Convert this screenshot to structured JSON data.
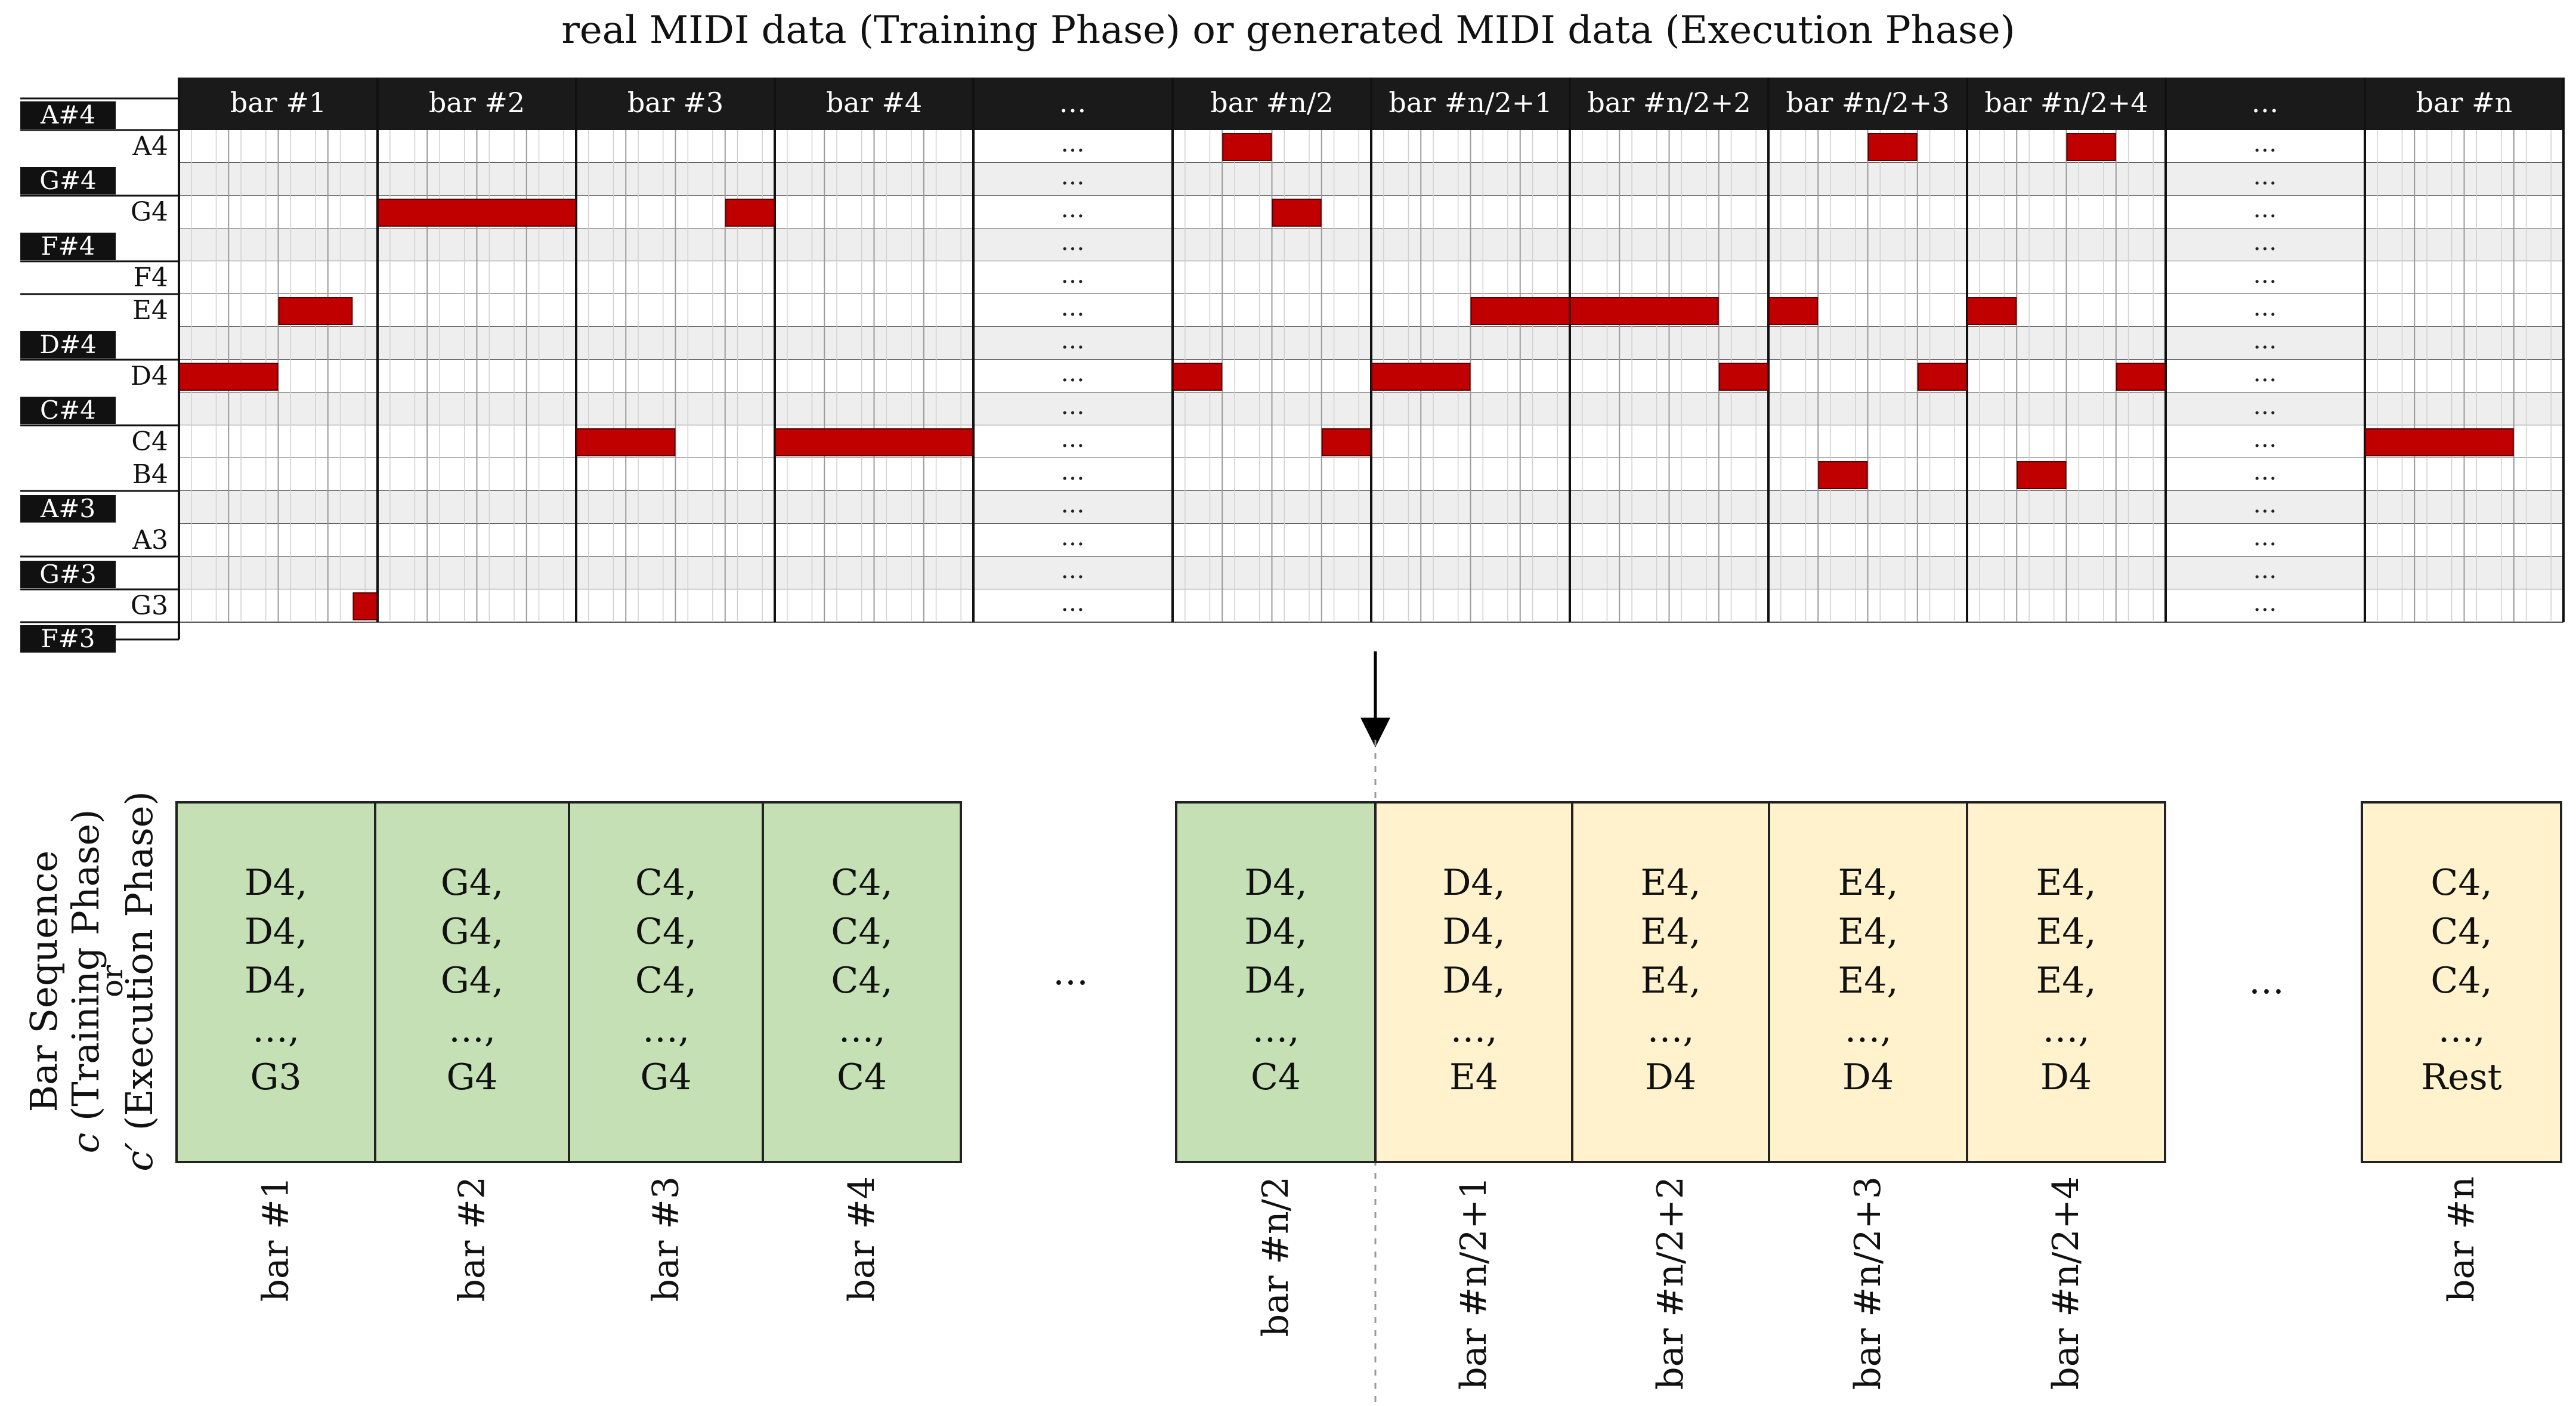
{
  "title": "real MIDI data (Training Phase) or generated MIDI data (Execution Phase)",
  "piano_roll": {
    "bar_headers": [
      "bar #1",
      "bar #2",
      "bar #3",
      "bar #4",
      "…",
      "bar #n/2",
      "bar #n/2+1",
      "bar #n/2+2",
      "bar #n/2+3",
      "bar #n/2+4",
      "…",
      "bar #n"
    ],
    "pitches": [
      "A4",
      "G#4",
      "G4",
      "F#4",
      "F4",
      "E4",
      "D#4",
      "D4",
      "C#4",
      "C4",
      "B4",
      "A#3",
      "A3",
      "G#3",
      "G3"
    ],
    "black_key_labels": [
      "A#4",
      "G#4",
      "F#4",
      "D#4",
      "C#4",
      "A#3",
      "G#3",
      "F#3"
    ],
    "white_key_labels": [
      "A4",
      "G4",
      "F4",
      "E4",
      "D4",
      "C4",
      "B4",
      "A3",
      "G3"
    ],
    "ellipsis": "…",
    "steps_per_bar": 4,
    "note_color": "#c00000",
    "notes": [
      {
        "pitch": "D4",
        "bar": 0,
        "start": 0,
        "len": 2
      },
      {
        "pitch": "E4",
        "bar": 0,
        "start": 2,
        "len": 1.5
      },
      {
        "pitch": "G3",
        "bar": 0,
        "start": 3.5,
        "len": 0.5
      },
      {
        "pitch": "G4",
        "bar": 1,
        "start": 0,
        "len": 4
      },
      {
        "pitch": "C4",
        "bar": 2,
        "start": 0,
        "len": 2
      },
      {
        "pitch": "G4",
        "bar": 2,
        "start": 3,
        "len": 1
      },
      {
        "pitch": "C4",
        "bar": 3,
        "start": 0,
        "len": 4
      },
      {
        "pitch": "D4",
        "bar": 5,
        "start": 0,
        "len": 1
      },
      {
        "pitch": "A4",
        "bar": 5,
        "start": 1,
        "len": 1
      },
      {
        "pitch": "G4",
        "bar": 5,
        "start": 2,
        "len": 1
      },
      {
        "pitch": "C4",
        "bar": 5,
        "start": 3,
        "len": 1
      },
      {
        "pitch": "D4",
        "bar": 6,
        "start": 0,
        "len": 2
      },
      {
        "pitch": "E4",
        "bar": 6,
        "start": 2,
        "len": 2
      },
      {
        "pitch": "E4",
        "bar": 7,
        "start": 0,
        "len": 3
      },
      {
        "pitch": "D4",
        "bar": 7,
        "start": 3,
        "len": 1
      },
      {
        "pitch": "E4",
        "bar": 8,
        "start": 0,
        "len": 1
      },
      {
        "pitch": "B4",
        "bar": 8,
        "start": 1,
        "len": 1
      },
      {
        "pitch": "A4",
        "bar": 8,
        "start": 2,
        "len": 1
      },
      {
        "pitch": "D4",
        "bar": 8,
        "start": 3,
        "len": 1
      },
      {
        "pitch": "E4",
        "bar": 9,
        "start": 0,
        "len": 1
      },
      {
        "pitch": "B4",
        "bar": 9,
        "start": 1,
        "len": 1
      },
      {
        "pitch": "A4",
        "bar": 9,
        "start": 2,
        "len": 1
      },
      {
        "pitch": "D4",
        "bar": 9,
        "start": 3,
        "len": 1
      },
      {
        "pitch": "C4",
        "bar": 11,
        "start": 0,
        "len": 3
      }
    ]
  },
  "sequence": {
    "y_label_line1": "Bar Sequence",
    "y_label_line2_var": "c",
    "y_label_line2_text": " (Training Phase)",
    "y_label_or": "or",
    "y_label_line3_var": "c′",
    "y_label_line3_text": " (Execution Phase)",
    "ellipsis": "…",
    "green_color": "#c5e0b4",
    "yellow_color": "#fff2cc",
    "cells": [
      {
        "bar": 0,
        "color": "green",
        "lines": [
          "D4,",
          "D4,",
          "D4,",
          "…,",
          "G3"
        ],
        "label": "bar #1"
      },
      {
        "bar": 1,
        "color": "green",
        "lines": [
          "G4,",
          "G4,",
          "G4,",
          "…,",
          "G4"
        ],
        "label": "bar #2"
      },
      {
        "bar": 2,
        "color": "green",
        "lines": [
          "C4,",
          "C4,",
          "C4,",
          "…,",
          "G4"
        ],
        "label": "bar #3"
      },
      {
        "bar": 3,
        "color": "green",
        "lines": [
          "C4,",
          "C4,",
          "C4,",
          "…,",
          "C4"
        ],
        "label": "bar #4"
      },
      {
        "bar": 5,
        "color": "green",
        "lines": [
          "D4,",
          "D4,",
          "D4,",
          "…,",
          "C4"
        ],
        "label": "bar #n/2"
      },
      {
        "bar": 6,
        "color": "yellow",
        "lines": [
          "D4,",
          "D4,",
          "D4,",
          "…,",
          "E4"
        ],
        "label": "bar #n/2+1"
      },
      {
        "bar": 7,
        "color": "yellow",
        "lines": [
          "E4,",
          "E4,",
          "E4,",
          "…,",
          "D4"
        ],
        "label": "bar #n/2+2"
      },
      {
        "bar": 8,
        "color": "yellow",
        "lines": [
          "E4,",
          "E4,",
          "E4,",
          "…,",
          "D4"
        ],
        "label": "bar #n/2+3"
      },
      {
        "bar": 9,
        "color": "yellow",
        "lines": [
          "E4,",
          "E4,",
          "E4,",
          "…,",
          "D4"
        ],
        "label": "bar #n/2+4"
      },
      {
        "bar": 11,
        "color": "yellow",
        "lines": [
          "C4,",
          "C4,",
          "C4,",
          "…,",
          "Rest"
        ],
        "label": "bar #n"
      }
    ]
  }
}
